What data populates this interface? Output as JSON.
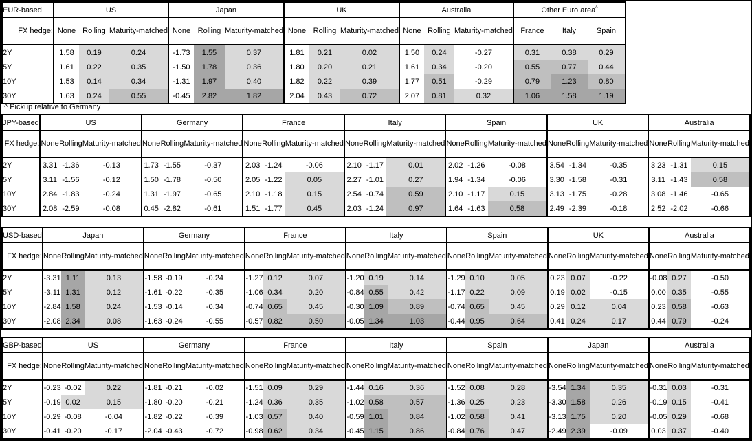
{
  "note": "^ Pickup relative to Germany",
  "labels": {
    "fx_hedge": "FX hedge:",
    "tenors": [
      "2Y",
      "5Y",
      "10Y",
      "30Y"
    ],
    "hedge_types": [
      "None",
      "Rolling",
      "Maturity-matched"
    ]
  },
  "shade_colors": [
    "#ffffff",
    "#d9d9d9",
    "#bfbfbf",
    "#a6a6a6"
  ],
  "blocks": [
    {
      "id": "eur",
      "label": "EUR-based",
      "groups": [
        {
          "name": "US",
          "cols": [
            "None",
            "Rolling",
            "Maturity-matched"
          ],
          "shade_cols": [
            1,
            2
          ],
          "rows": [
            [
              "1.58",
              "0.19",
              "0.24"
            ],
            [
              "1.61",
              "0.22",
              "0.35"
            ],
            [
              "1.53",
              "0.14",
              "0.34"
            ],
            [
              "1.63",
              "0.24",
              "0.55"
            ]
          ]
        },
        {
          "name": "Japan",
          "cols": [
            "None",
            "Rolling",
            "Maturity-matched"
          ],
          "shade_cols": [
            1,
            2
          ],
          "rows": [
            [
              "-1.73",
              "1.55",
              "0.37"
            ],
            [
              "-1.50",
              "1.78",
              "0.36"
            ],
            [
              "-1.31",
              "1.97",
              "0.40"
            ],
            [
              "-0.45",
              "2.82",
              "1.82"
            ]
          ]
        },
        {
          "name": "UK",
          "cols": [
            "None",
            "Rolling",
            "Maturity-matched"
          ],
          "shade_cols": [
            1,
            2
          ],
          "rows": [
            [
              "1.81",
              "0.21",
              "0.02"
            ],
            [
              "1.80",
              "0.20",
              "0.21"
            ],
            [
              "1.82",
              "0.22",
              "0.39"
            ],
            [
              "2.04",
              "0.43",
              "0.72"
            ]
          ]
        },
        {
          "name": "Australia",
          "cols": [
            "None",
            "Rolling",
            "Maturity-matched"
          ],
          "shade_cols": [
            1,
            2
          ],
          "rows": [
            [
              "1.50",
              "0.24",
              "-0.27"
            ],
            [
              "1.61",
              "0.34",
              "-0.20"
            ],
            [
              "1.77",
              "0.51",
              "-0.29"
            ],
            [
              "2.07",
              "0.81",
              "0.32"
            ]
          ]
        },
        {
          "name": "Other Euro area",
          "sup": "^",
          "cols": [
            "France",
            "Italy",
            "Spain"
          ],
          "shade_cols": [
            0,
            1,
            2
          ],
          "rows": [
            [
              "0.31",
              "0.38",
              "0.29"
            ],
            [
              "0.55",
              "0.77",
              "0.44"
            ],
            [
              "0.79",
              "1.23",
              "0.80"
            ],
            [
              "1.06",
              "1.58",
              "1.19"
            ]
          ]
        }
      ]
    },
    {
      "id": "jpy",
      "label": "JPY-based",
      "groups": [
        {
          "name": "US",
          "cols": [
            "None",
            "Rolling",
            "Maturity-matched"
          ],
          "shade_cols": [
            1,
            2
          ],
          "rows": [
            [
              "3.31",
              "-1.36",
              "-0.13"
            ],
            [
              "3.11",
              "-1.56",
              "-0.12"
            ],
            [
              "2.84",
              "-1.83",
              "-0.24"
            ],
            [
              "2.08",
              "-2.59",
              "-0.08"
            ]
          ]
        },
        {
          "name": "Germany",
          "cols": [
            "None",
            "Rolling",
            "Maturity-matched"
          ],
          "shade_cols": [
            1,
            2
          ],
          "rows": [
            [
              "1.73",
              "-1.55",
              "-0.37"
            ],
            [
              "1.50",
              "-1.78",
              "-0.50"
            ],
            [
              "1.31",
              "-1.97",
              "-0.65"
            ],
            [
              "0.45",
              "-2.82",
              "-0.61"
            ]
          ]
        },
        {
          "name": "France",
          "cols": [
            "None",
            "Rolling",
            "Maturity-matched"
          ],
          "shade_cols": [
            1,
            2
          ],
          "rows": [
            [
              "2.03",
              "-1.24",
              "-0.06"
            ],
            [
              "2.05",
              "-1.22",
              "0.05"
            ],
            [
              "2.10",
              "-1.18",
              "0.15"
            ],
            [
              "1.51",
              "-1.77",
              "0.45"
            ]
          ]
        },
        {
          "name": "Italy",
          "cols": [
            "None",
            "Rolling",
            "Maturity-matched"
          ],
          "shade_cols": [
            1,
            2
          ],
          "rows": [
            [
              "2.10",
              "-1.17",
              "0.01"
            ],
            [
              "2.27",
              "-1.01",
              "0.27"
            ],
            [
              "2.54",
              "-0.74",
              "0.59"
            ],
            [
              "2.03",
              "-1.24",
              "0.97"
            ]
          ]
        },
        {
          "name": "Spain",
          "cols": [
            "None",
            "Rolling",
            "Maturity-matched"
          ],
          "shade_cols": [
            1,
            2
          ],
          "rows": [
            [
              "2.02",
              "-1.26",
              "-0.08"
            ],
            [
              "1.94",
              "-1.34",
              "-0.06"
            ],
            [
              "2.10",
              "-1.17",
              "0.15"
            ],
            [
              "1.64",
              "-1.63",
              "0.58"
            ]
          ]
        },
        {
          "name": "UK",
          "cols": [
            "None",
            "Rolling",
            "Maturity-matched"
          ],
          "shade_cols": [
            1,
            2
          ],
          "rows": [
            [
              "3.54",
              "-1.34",
              "-0.35"
            ],
            [
              "3.30",
              "-1.58",
              "-0.31"
            ],
            [
              "3.13",
              "-1.75",
              "-0.28"
            ],
            [
              "2.49",
              "-2.39",
              "-0.18"
            ]
          ]
        },
        {
          "name": "Australia",
          "cols": [
            "None",
            "Rolling",
            "Maturity-matched"
          ],
          "shade_cols": [
            1,
            2
          ],
          "rows": [
            [
              "3.23",
              "-1.31",
              "0.15"
            ],
            [
              "3.11",
              "-1.43",
              "0.58"
            ],
            [
              "3.08",
              "-1.46",
              "-0.65"
            ],
            [
              "2.52",
              "-2.02",
              "-0.66"
            ]
          ]
        }
      ]
    },
    {
      "id": "usd",
      "label": "USD-based",
      "groups": [
        {
          "name": "Japan",
          "cols": [
            "None",
            "Rolling",
            "Maturity-matched"
          ],
          "shade_cols": [
            1,
            2
          ],
          "rows": [
            [
              "-3.31",
              "1.11",
              "0.13"
            ],
            [
              "-3.11",
              "1.31",
              "0.12"
            ],
            [
              "-2.84",
              "1.58",
              "0.24"
            ],
            [
              "-2.08",
              "2.34",
              "0.08"
            ]
          ]
        },
        {
          "name": "Germany",
          "cols": [
            "None",
            "Rolling",
            "Maturity-matched"
          ],
          "shade_cols": [
            1,
            2
          ],
          "rows": [
            [
              "-1.58",
              "-0.19",
              "-0.24"
            ],
            [
              "-1.61",
              "-0.22",
              "-0.35"
            ],
            [
              "-1.53",
              "-0.14",
              "-0.34"
            ],
            [
              "-1.63",
              "-0.24",
              "-0.55"
            ]
          ]
        },
        {
          "name": "France",
          "cols": [
            "None",
            "Rolling",
            "Maturity-matched"
          ],
          "shade_cols": [
            1,
            2
          ],
          "rows": [
            [
              "-1.27",
              "0.12",
              "0.07"
            ],
            [
              "-1.06",
              "0.34",
              "0.20"
            ],
            [
              "-0.74",
              "0.65",
              "0.45"
            ],
            [
              "-0.57",
              "0.82",
              "0.50"
            ]
          ]
        },
        {
          "name": "Italy",
          "cols": [
            "None",
            "Rolling",
            "Maturity-matched"
          ],
          "shade_cols": [
            1,
            2
          ],
          "rows": [
            [
              "-1.20",
              "0.19",
              "0.14"
            ],
            [
              "-0.84",
              "0.55",
              "0.42"
            ],
            [
              "-0.30",
              "1.09",
              "0.89"
            ],
            [
              "-0.05",
              "1.34",
              "1.03"
            ]
          ]
        },
        {
          "name": "Spain",
          "cols": [
            "None",
            "Rolling",
            "Maturity-matched"
          ],
          "shade_cols": [
            1,
            2
          ],
          "rows": [
            [
              "-1.29",
              "0.10",
              "0.05"
            ],
            [
              "-1.17",
              "0.22",
              "0.09"
            ],
            [
              "-0.74",
              "0.65",
              "0.45"
            ],
            [
              "-0.44",
              "0.95",
              "0.64"
            ]
          ]
        },
        {
          "name": "UK",
          "cols": [
            "None",
            "Rolling",
            "Maturity-matched"
          ],
          "shade_cols": [
            1,
            2
          ],
          "rows": [
            [
              "0.23",
              "0.07",
              "-0.22"
            ],
            [
              "0.19",
              "0.02",
              "-0.15"
            ],
            [
              "0.29",
              "0.12",
              "0.04"
            ],
            [
              "0.41",
              "0.24",
              "0.17"
            ]
          ]
        },
        {
          "name": "Australia",
          "cols": [
            "None",
            "Rolling",
            "Maturity-matched"
          ],
          "shade_cols": [
            1,
            2
          ],
          "rows": [
            [
              "-0.08",
              "0.27",
              "-0.50"
            ],
            [
              "0.00",
              "0.35",
              "-0.55"
            ],
            [
              "0.23",
              "0.58",
              "-0.63"
            ],
            [
              "0.44",
              "0.79",
              "-0.24"
            ]
          ]
        }
      ]
    },
    {
      "id": "gbp",
      "label": "GBP-based",
      "groups": [
        {
          "name": "US",
          "cols": [
            "None",
            "Rolling",
            "Maturity-matched"
          ],
          "shade_cols": [
            1,
            2
          ],
          "rows": [
            [
              "-0.23",
              "-0.02",
              "0.22"
            ],
            [
              "-0.19",
              "0.02",
              "0.15"
            ],
            [
              "-0.29",
              "-0.08",
              "-0.04"
            ],
            [
              "-0.41",
              "-0.20",
              "-0.17"
            ]
          ]
        },
        {
          "name": "Germany",
          "cols": [
            "None",
            "Rolling",
            "Maturity-matched"
          ],
          "shade_cols": [
            1,
            2
          ],
          "rows": [
            [
              "-1.81",
              "-0.21",
              "-0.02"
            ],
            [
              "-1.80",
              "-0.20",
              "-0.21"
            ],
            [
              "-1.82",
              "-0.22",
              "-0.39"
            ],
            [
              "-2.04",
              "-0.43",
              "-0.72"
            ]
          ]
        },
        {
          "name": "France",
          "cols": [
            "None",
            "Rolling",
            "Maturity-matched"
          ],
          "shade_cols": [
            1,
            2
          ],
          "rows": [
            [
              "-1.51",
              "0.09",
              "0.29"
            ],
            [
              "-1.24",
              "0.36",
              "0.35"
            ],
            [
              "-1.03",
              "0.57",
              "0.40"
            ],
            [
              "-0.98",
              "0.62",
              "0.34"
            ]
          ]
        },
        {
          "name": "Italy",
          "cols": [
            "None",
            "Rolling",
            "Maturity-matched"
          ],
          "shade_cols": [
            1,
            2
          ],
          "rows": [
            [
              "-1.44",
              "0.16",
              "0.36"
            ],
            [
              "-1.02",
              "0.58",
              "0.57"
            ],
            [
              "-0.59",
              "1.01",
              "0.84"
            ],
            [
              "-0.45",
              "1.15",
              "0.86"
            ]
          ]
        },
        {
          "name": "Spain",
          "cols": [
            "None",
            "Rolling",
            "Maturity-matched"
          ],
          "shade_cols": [
            1,
            2
          ],
          "rows": [
            [
              "-1.52",
              "0.08",
              "0.28"
            ],
            [
              "-1.36",
              "0.25",
              "0.23"
            ],
            [
              "-1.02",
              "0.58",
              "0.41"
            ],
            [
              "-0.84",
              "0.76",
              "0.47"
            ]
          ]
        },
        {
          "name": "Japan",
          "cols": [
            "None",
            "Rolling",
            "Maturity-matched"
          ],
          "shade_cols": [
            1,
            2
          ],
          "rows": [
            [
              "-3.54",
              "1.34",
              "0.35"
            ],
            [
              "-3.30",
              "1.58",
              "0.26"
            ],
            [
              "-3.13",
              "1.75",
              "0.20"
            ],
            [
              "-2.49",
              "2.39",
              "-0.09"
            ]
          ]
        },
        {
          "name": "Australia",
          "cols": [
            "None",
            "Rolling",
            "Maturity-matched"
          ],
          "shade_cols": [
            1,
            2
          ],
          "rows": [
            [
              "-0.31",
              "0.03",
              "-0.31"
            ],
            [
              "-0.19",
              "0.15",
              "-0.41"
            ],
            [
              "-0.05",
              "0.29",
              "-0.68"
            ],
            [
              "0.03",
              "0.37",
              "-0.40"
            ]
          ]
        }
      ]
    }
  ]
}
